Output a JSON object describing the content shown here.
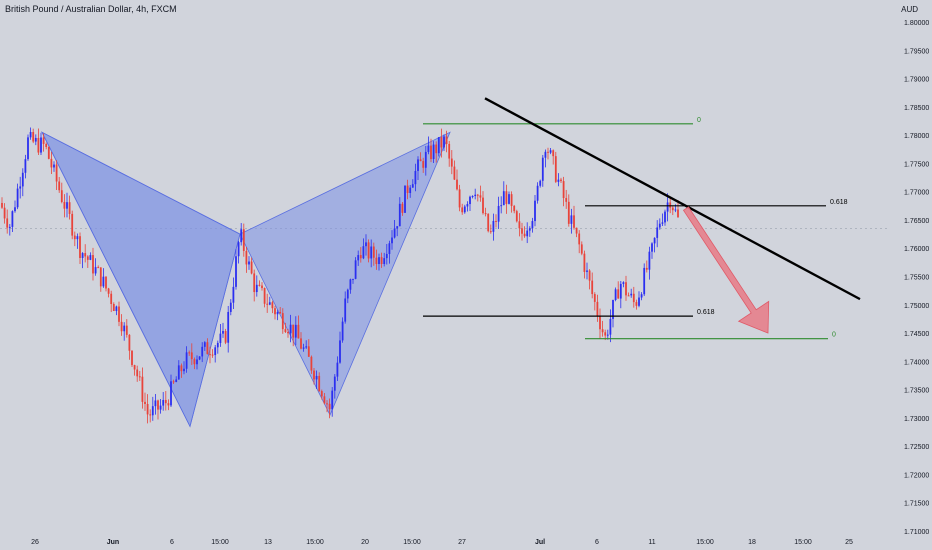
{
  "header": {
    "title": "British Pound / Australian Dollar, 4h, FXCM"
  },
  "axis_unit": "AUD",
  "colors": {
    "background": "#d1d4dc",
    "bull": "#2b2ff0",
    "bear": "#e8433a",
    "pattern_fill": "#7b8fe6",
    "trendline": "#000000",
    "fib_green": "#2e8b2e",
    "fib_black": "#000000",
    "arrow": "#e87a86"
  },
  "chart_data": {
    "type": "candlestick",
    "y_ticks": [
      "1.80000",
      "1.79500",
      "1.79000",
      "1.78500",
      "1.78000",
      "1.77500",
      "1.77000",
      "1.76500",
      "1.76000",
      "1.75500",
      "1.75000",
      "1.74500",
      "1.74000",
      "1.73500",
      "1.73000",
      "1.72500",
      "1.72000",
      "1.71500",
      "1.71000"
    ],
    "y_range": [
      1.71,
      1.8
    ],
    "x_labels": [
      "26",
      "Jun",
      "6",
      "15:00",
      "13",
      "15:00",
      "20",
      "15:00",
      "27",
      "Jul",
      "6",
      "11",
      "15:00",
      "18",
      "15:00",
      "25"
    ],
    "current_price_line": 1.7635,
    "price_path": [
      {
        "t": 0,
        "p": 1.768
      },
      {
        "t": 10,
        "p": 1.764
      },
      {
        "t": 28,
        "p": 1.779
      },
      {
        "t": 45,
        "p": 1.778
      },
      {
        "t": 60,
        "p": 1.77
      },
      {
        "t": 80,
        "p": 1.76
      },
      {
        "t": 100,
        "p": 1.755
      },
      {
        "t": 120,
        "p": 1.748
      },
      {
        "t": 135,
        "p": 1.739
      },
      {
        "t": 148,
        "p": 1.7305
      },
      {
        "t": 165,
        "p": 1.7325
      },
      {
        "t": 185,
        "p": 1.74
      },
      {
        "t": 205,
        "p": 1.742
      },
      {
        "t": 225,
        "p": 1.744
      },
      {
        "t": 240,
        "p": 1.7625
      },
      {
        "t": 255,
        "p": 1.753
      },
      {
        "t": 275,
        "p": 1.749
      },
      {
        "t": 295,
        "p": 1.745
      },
      {
        "t": 315,
        "p": 1.738
      },
      {
        "t": 330,
        "p": 1.7315
      },
      {
        "t": 345,
        "p": 1.75
      },
      {
        "t": 360,
        "p": 1.76
      },
      {
        "t": 380,
        "p": 1.758
      },
      {
        "t": 395,
        "p": 1.764
      },
      {
        "t": 410,
        "p": 1.772
      },
      {
        "t": 425,
        "p": 1.776
      },
      {
        "t": 445,
        "p": 1.779
      },
      {
        "t": 460,
        "p": 1.767
      },
      {
        "t": 475,
        "p": 1.771
      },
      {
        "t": 490,
        "p": 1.762
      },
      {
        "t": 505,
        "p": 1.77
      },
      {
        "t": 520,
        "p": 1.762
      },
      {
        "t": 535,
        "p": 1.767
      },
      {
        "t": 545,
        "p": 1.779
      },
      {
        "t": 560,
        "p": 1.771
      },
      {
        "t": 570,
        "p": 1.765
      },
      {
        "t": 580,
        "p": 1.76
      },
      {
        "t": 592,
        "p": 1.752
      },
      {
        "t": 605,
        "p": 1.744
      },
      {
        "t": 620,
        "p": 1.754
      },
      {
        "t": 635,
        "p": 1.75
      },
      {
        "t": 650,
        "p": 1.758
      },
      {
        "t": 660,
        "p": 1.765
      },
      {
        "t": 670,
        "p": 1.769
      },
      {
        "t": 680,
        "p": 1.764
      }
    ],
    "pattern_1": [
      [
        1.7805,
        1.7285
      ],
      [
        1.7805,
        1.7625
      ],
      [
        1.7285,
        1.7625
      ]
    ],
    "pattern_2": [
      [
        1.7625,
        1.7305
      ],
      [
        1.7805,
        1.7305
      ],
      [
        1.7625,
        1.7805
      ]
    ],
    "trendline": [
      1.7865,
      1.751
    ],
    "fib_levels": [
      {
        "label": "0",
        "price": 1.782,
        "color": "green"
      },
      {
        "label": "0.618",
        "price": 1.7675,
        "color": "black"
      },
      {
        "label": "0.618",
        "price": 1.748,
        "color": "black"
      },
      {
        "label": "0",
        "price": 1.744,
        "color": "green"
      }
    ],
    "arrow": {
      "from_price": 1.767,
      "to_price": 1.745
    }
  }
}
